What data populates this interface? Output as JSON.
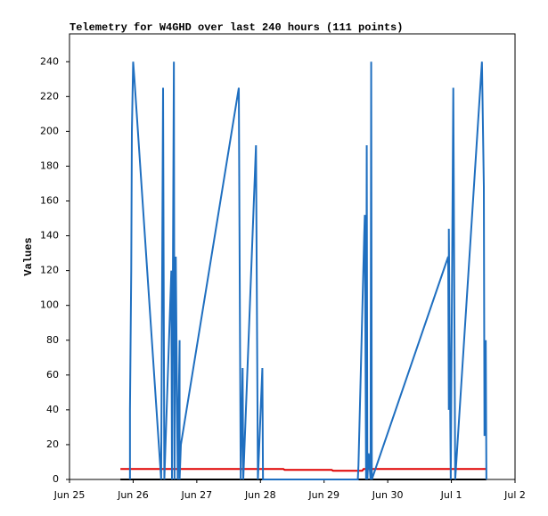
{
  "chart_data": {
    "type": "line",
    "title": "Telemetry for W4GHD over last 240 hours (111 points)",
    "y_label": "Values",
    "xlim": [
      0,
      7
    ],
    "ylim": [
      0,
      256
    ],
    "xticks": [
      {
        "value": 0,
        "label": "Jun 25"
      },
      {
        "value": 1,
        "label": "Jun 26"
      },
      {
        "value": 2,
        "label": "Jun 27"
      },
      {
        "value": 3,
        "label": "Jun 28"
      },
      {
        "value": 4,
        "label": "Jun 29"
      },
      {
        "value": 5,
        "label": "Jun 30"
      },
      {
        "value": 6,
        "label": "Jul 1"
      },
      {
        "value": 7,
        "label": "Jul 2"
      }
    ],
    "yticks": [
      0,
      20,
      40,
      60,
      80,
      100,
      120,
      140,
      160,
      180,
      200,
      220,
      240
    ],
    "series": [
      {
        "color": "#000000",
        "x": [
          0.8,
          6.55
        ],
        "values": [
          0,
          0
        ]
      },
      {
        "color": "#e00000",
        "x": [
          0.8,
          3.36,
          3.38,
          4.12,
          4.14,
          4.6,
          4.62,
          6.55
        ],
        "values": [
          6,
          6,
          5.5,
          5.5,
          5,
          5,
          6,
          6
        ]
      },
      {
        "color": "#1f6fc0",
        "x": [
          0.95,
          0.95,
          0.97,
          0.98,
          1.0,
          1.02,
          1.44,
          1.47,
          1.49,
          1.6,
          1.61,
          1.64,
          1.65,
          1.67,
          1.7,
          1.73,
          1.73,
          1.75,
          2.66,
          2.69,
          2.72,
          2.73,
          2.93,
          2.96,
          3.03,
          3.04,
          4.53,
          4.54,
          4.63,
          4.64,
          4.66,
          4.67,
          4.68,
          4.7,
          4.73,
          4.74,
          4.75,
          5.95,
          5.96,
          5.96,
          5.99,
          6.03,
          6.06,
          6.48,
          6.49,
          6.51,
          6.52,
          6.54,
          6.55
        ],
        "values": [
          0,
          40,
          120,
          200,
          240,
          230,
          0,
          225,
          0,
          120,
          0,
          240,
          0,
          128,
          0,
          80,
          0,
          20,
          225,
          0,
          64,
          0,
          192,
          0,
          64,
          0,
          0,
          8,
          140,
          152,
          0,
          192,
          0,
          15,
          0,
          240,
          0,
          128,
          40,
          144,
          0,
          225,
          0,
          240,
          217,
          168,
          25,
          80,
          0
        ]
      }
    ]
  }
}
